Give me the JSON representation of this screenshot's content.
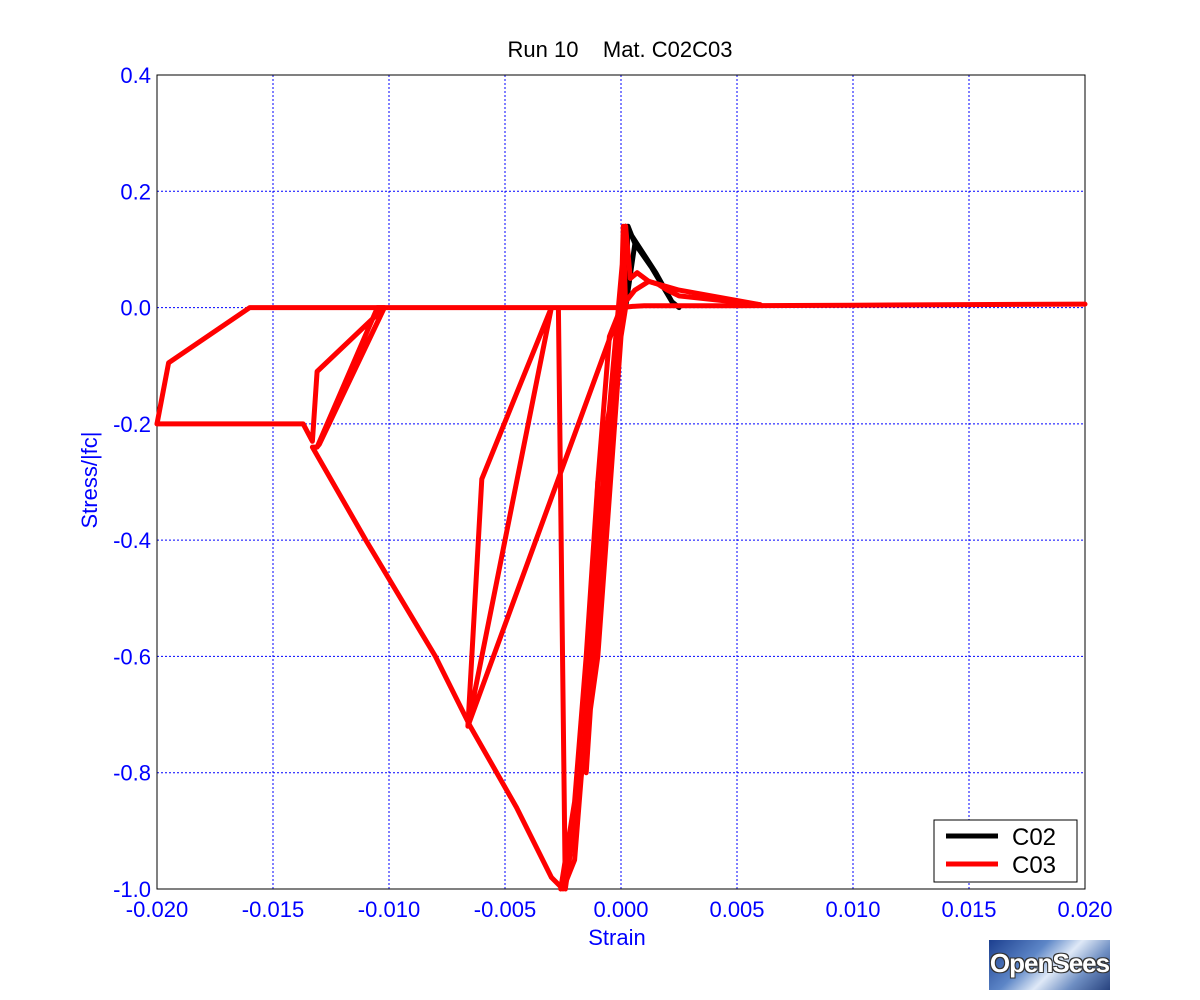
{
  "chart_data": {
    "type": "line",
    "title": "Run 10    Mat. C02C03",
    "xlabel": "Strain",
    "ylabel": "Stress/|fc|",
    "xlim": [
      -0.02,
      0.02
    ],
    "ylim": [
      -1.0,
      0.4
    ],
    "xticks": [
      "-0.020",
      "-0.015",
      "-0.010",
      "-0.005",
      "0.000",
      "0.005",
      "0.010",
      "0.015",
      "0.020"
    ],
    "yticks": [
      "0.4",
      "0.2",
      "0.0",
      "-0.2",
      "-0.4",
      "-0.6",
      "-0.8",
      "-1.0"
    ],
    "grid": true,
    "legend_position": "bottom-right",
    "series": [
      {
        "name": "C02",
        "color": "#000000",
        "x": [
          0.0,
          0.0002,
          0.0015,
          0.0022,
          0.0025,
          0.0022,
          0.0013,
          0.0006,
          0.0003,
          0.0002,
          0.0006,
          0.0013,
          0.0006,
          0.0002
        ],
        "y": [
          0.0,
          0.14,
          0.06,
          0.01,
          0.0,
          0.01,
          0.07,
          0.11,
          0.14,
          0.0,
          0.11,
          0.07,
          0.11,
          0.0
        ]
      },
      {
        "name": "C03",
        "color": "#ff0000",
        "x": [
          -0.02,
          -0.0137,
          -0.0133,
          -0.0131,
          -0.0102,
          -0.0131,
          -0.013,
          -0.0102,
          -0.0105,
          -0.0131,
          -0.0133,
          -0.011,
          -0.008,
          -0.0065,
          -0.0045,
          -0.003,
          -0.0025,
          -0.002,
          -0.0015,
          -0.001,
          -0.0005,
          0.0,
          0.0005,
          0.001,
          0.0015,
          0.002,
          0.005,
          0.01,
          0.02
        ],
        "y": [
          -0.2,
          -0.2,
          -0.23,
          -0.11,
          0.0,
          -0.24,
          -0.235,
          0.0,
          0.0,
          -0.24,
          -0.24,
          -0.4,
          -0.6,
          -0.72,
          -0.86,
          -0.98,
          -1.0,
          -0.95,
          -0.7,
          -0.3,
          -0.05,
          0.0,
          0.002,
          0.003,
          0.003,
          0.003,
          0.003,
          0.004,
          0.006
        ]
      },
      {
        "name": "",
        "color": "#ff0000",
        "x": [
          -0.02,
          -0.0195,
          -0.016,
          -0.012,
          -0.01,
          -0.005,
          0.0,
          0.0,
          -0.0066,
          -0.006,
          -0.003,
          -0.0066,
          -0.003,
          -0.0027,
          -0.0024,
          -0.001,
          0.0,
          0.0002,
          -0.001,
          -0.0015,
          -0.001,
          0.0,
          0.0001,
          0.0002,
          -0.001,
          -0.0015,
          -0.002,
          -0.0026
        ],
        "y": [
          -0.2,
          -0.095,
          0.0,
          0.0,
          0.0,
          0.0,
          0.0,
          0.0,
          -0.72,
          -0.295,
          0.0,
          -0.72,
          0.0,
          0.0,
          -1.0,
          -0.6,
          -0.05,
          0.14,
          -0.4,
          -0.8,
          -0.5,
          0.0,
          0.14,
          0.0,
          -0.3,
          -0.6,
          -0.85,
          -1.0
        ]
      },
      {
        "name": "",
        "color": "#ff0000",
        "x": [
          0.0,
          0.0002,
          0.0004,
          0.0007,
          0.0012,
          0.0025,
          0.006
        ],
        "y": [
          0.0,
          0.14,
          0.05,
          0.06,
          0.045,
          0.03,
          0.005
        ]
      },
      {
        "name": "",
        "color": "#ff0000",
        "x": [
          0.0,
          0.0006,
          0.0012,
          0.0016,
          0.002,
          0.0025,
          0.006
        ],
        "y": [
          0.0,
          0.03,
          0.045,
          0.04,
          0.03,
          0.02,
          0.005
        ]
      }
    ]
  },
  "logo_text": "OpenSees"
}
